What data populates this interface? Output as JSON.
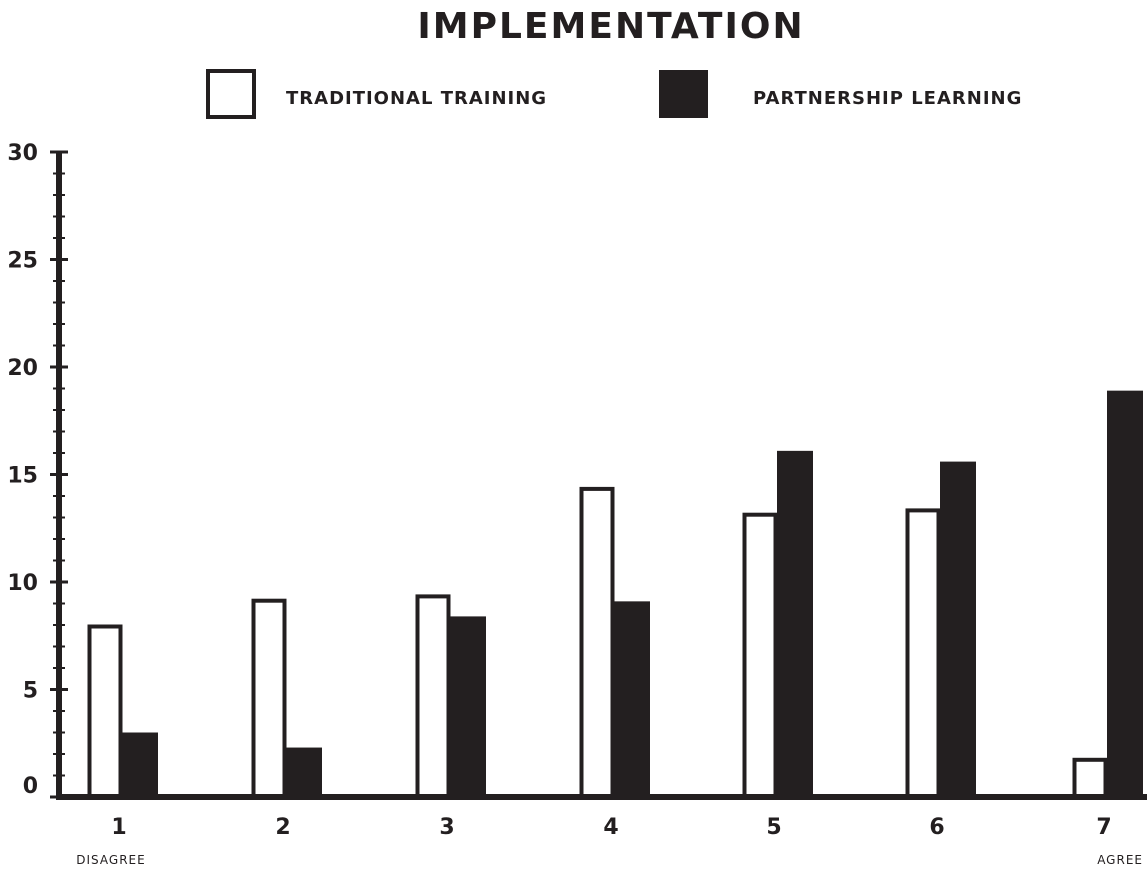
{
  "chart_data": {
    "type": "bar",
    "title": "IMPLEMENTATION",
    "categories": [
      "1",
      "2",
      "3",
      "4",
      "5",
      "6",
      "7"
    ],
    "series": [
      {
        "name": "TRADITIONAL TRAINING",
        "style": "outline",
        "values": [
          8,
          9.2,
          9.4,
          14.4,
          13.2,
          13.4,
          1.8
        ]
      },
      {
        "name": "PARTNERSHIP LEARNING",
        "style": "filled",
        "values": [
          3,
          2.3,
          8.4,
          9.1,
          16.1,
          15.6,
          18.9
        ]
      }
    ],
    "yticks": [
      0,
      5,
      10,
      15,
      20,
      25,
      30
    ],
    "ylim": [
      0,
      30
    ],
    "scale_labels": {
      "low": "DISAGREE",
      "high": "AGREE"
    },
    "xlabel": "",
    "ylabel": "",
    "grid": false,
    "legend_position": "top",
    "colors": {
      "ink": "#231f20",
      "background": "#ffffff"
    }
  }
}
